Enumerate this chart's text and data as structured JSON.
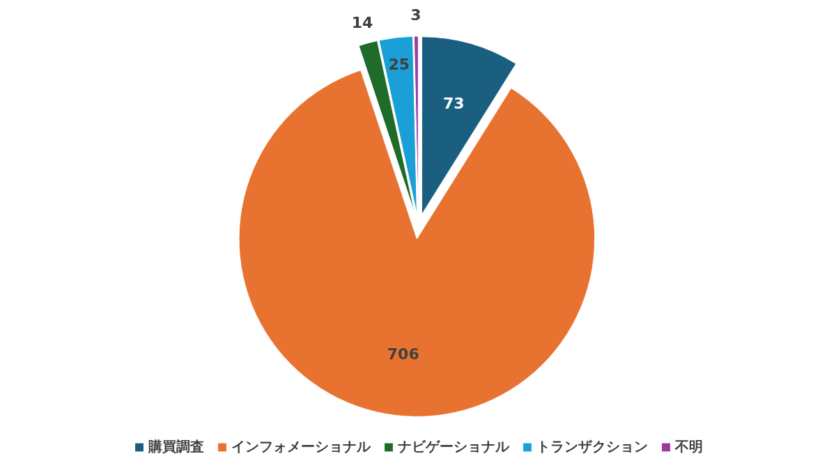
{
  "chart_data": {
    "type": "pie",
    "categories": [
      "購買調査",
      "インフォメーショナル",
      "ナビゲーショナル",
      "トランザクション",
      "不明"
    ],
    "values": [
      73,
      706,
      14,
      25,
      3
    ],
    "colors": [
      "#1a5f80",
      "#e87331",
      "#1e6b2a",
      "#1a9fd6",
      "#9b3aa0"
    ],
    "data_labels": true,
    "legend": "bottom"
  }
}
